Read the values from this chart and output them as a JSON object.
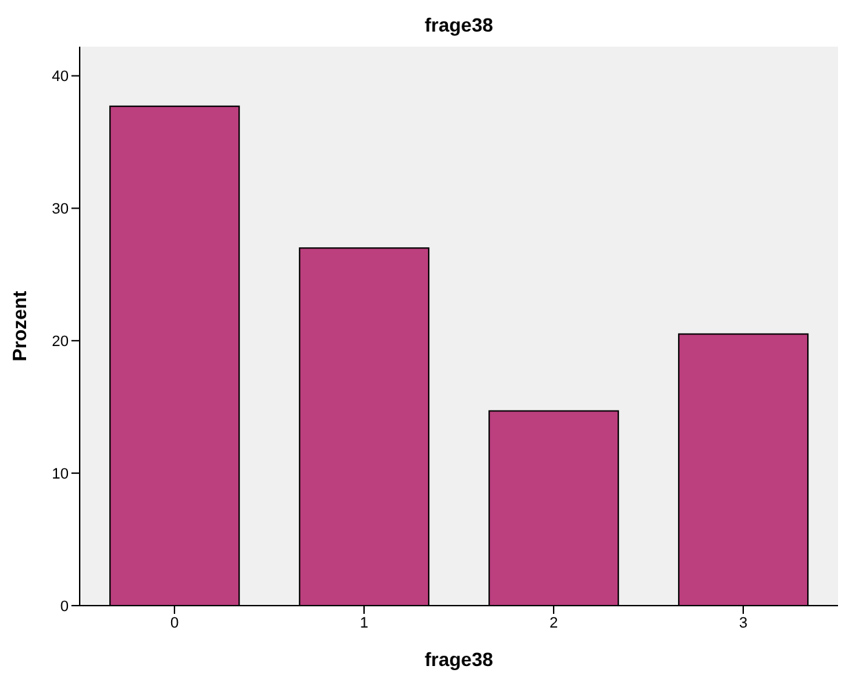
{
  "chart_data": {
    "type": "bar",
    "title": "frage38",
    "xlabel": "frage38",
    "ylabel": "Prozent",
    "categories": [
      "0",
      "1",
      "2",
      "3"
    ],
    "values": [
      37.7,
      27.0,
      14.7,
      20.5
    ],
    "color": "#bc3f7e",
    "ylim": [
      0,
      42.2
    ],
    "yticks": [
      0,
      10,
      20,
      30,
      40
    ]
  }
}
